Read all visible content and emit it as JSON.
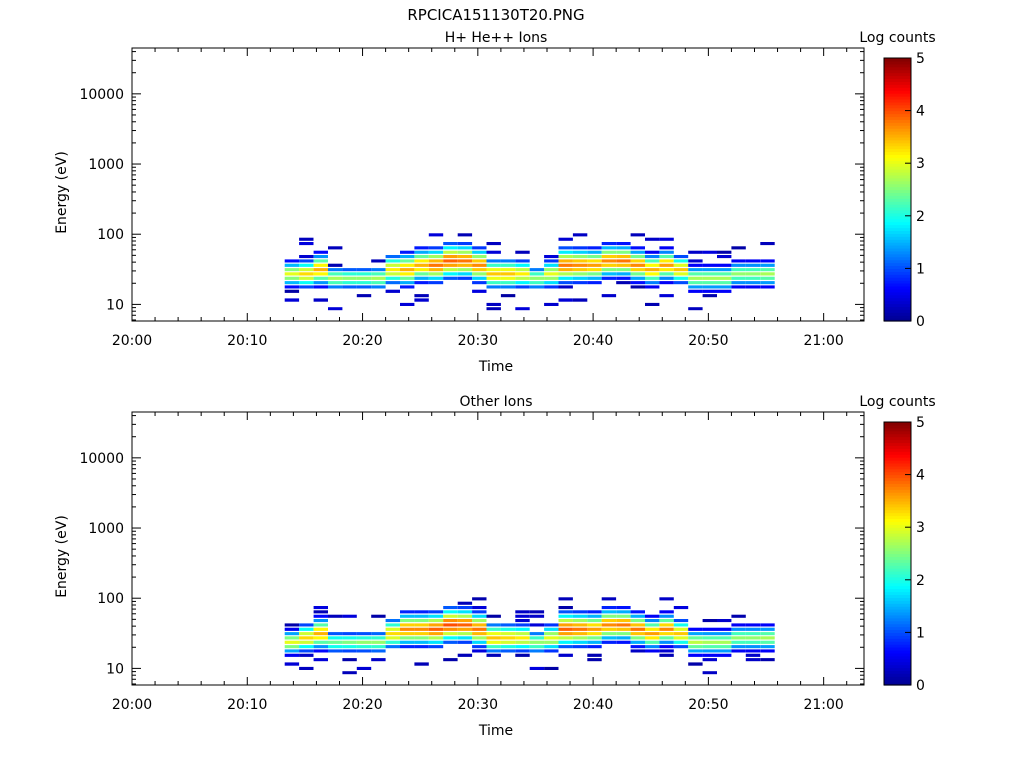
{
  "page": {
    "title": "RPCICA151130T20.PNG"
  },
  "colors": {
    "axis": "#000000",
    "background": "#ffffff",
    "colormap": [
      "#00008f",
      "#0000ff",
      "#0080ff",
      "#00ffff",
      "#80ff80",
      "#ffff00",
      "#ff8000",
      "#ff0000",
      "#800000"
    ]
  },
  "chart_data": [
    {
      "type": "heatmap",
      "title": "H+ He++ Ions",
      "xlabel": "Time",
      "ylabel": "Energy (eV)",
      "x_ticks": [
        "20:00",
        "20:10",
        "20:20",
        "20:30",
        "20:40",
        "20:50",
        "21:00"
      ],
      "x_range_minutes": [
        0,
        63.5
      ],
      "y_scale": "log",
      "y_ticks": [
        "10",
        "100",
        "1000",
        "10000"
      ],
      "y_range": [
        5.8,
        45000
      ],
      "colorbar": {
        "label": "Log counts",
        "range": [
          0,
          5
        ],
        "ticks": [
          "0",
          "1",
          "2",
          "3",
          "4",
          "5"
        ]
      },
      "time_start_min": 13.25,
      "time_step_min": 1.25,
      "energy_bins": [
        6.2,
        7.0,
        8.1,
        9.3,
        10.7,
        12.4,
        14.3,
        16.5,
        19.0,
        21.9,
        25.3,
        29.2,
        33.6,
        38.8,
        44.7,
        51.5,
        59.4,
        68.5,
        79.0,
        91.1
      ],
      "peak_log_counts": [
        3.0,
        3.3,
        3.5,
        2.7,
        2.6,
        2.6,
        2.7,
        3.2,
        3.5,
        3.5,
        3.8,
        3.9,
        3.8,
        3.7,
        3.4,
        3.4,
        3.2,
        2.6,
        3.0,
        3.8,
        3.7,
        3.6,
        3.7,
        3.8,
        3.7,
        3.5,
        3.6,
        3.4,
        2.7,
        2.7,
        2.7,
        2.6,
        2.6,
        2.7
      ],
      "peak_energy_ev": [
        24,
        26,
        28,
        22,
        21,
        21,
        22,
        30,
        30,
        33,
        34,
        40,
        38,
        36,
        27,
        27,
        24,
        22,
        25,
        32,
        34,
        36,
        38,
        38,
        34,
        30,
        33,
        28,
        23,
        23,
        23,
        24,
        24,
        25
      ],
      "band_width_bins": [
        3.8,
        4.2,
        4.8,
        3.5,
        3.3,
        3.3,
        3.5,
        4.6,
        5.0,
        5.0,
        5.2,
        5.4,
        5.2,
        5.2,
        4.6,
        4.6,
        4.2,
        3.6,
        4.2,
        5.4,
        5.2,
        5.0,
        5.0,
        4.8,
        4.8,
        4.6,
        4.6,
        4.2,
        3.8,
        3.8,
        3.8,
        3.8,
        3.8,
        3.8
      ],
      "noise_seed": 7
    },
    {
      "type": "heatmap",
      "title": "Other Ions",
      "xlabel": "Time",
      "ylabel": "Energy (eV)",
      "x_ticks": [
        "20:00",
        "20:10",
        "20:20",
        "20:30",
        "20:40",
        "20:50",
        "21:00"
      ],
      "x_range_minutes": [
        0,
        63.5
      ],
      "y_scale": "log",
      "y_ticks": [
        "10",
        "100",
        "1000",
        "10000"
      ],
      "y_range": [
        5.8,
        45000
      ],
      "colorbar": {
        "label": "Log counts",
        "range": [
          0,
          5
        ],
        "ticks": [
          "0",
          "1",
          "2",
          "3",
          "4",
          "5"
        ]
      },
      "time_start_min": 13.25,
      "time_step_min": 1.25,
      "energy_bins": [
        6.2,
        7.0,
        8.1,
        9.3,
        10.7,
        12.4,
        14.3,
        16.5,
        19.0,
        21.9,
        25.3,
        29.2,
        33.6,
        38.8,
        44.7,
        51.5,
        59.4,
        68.5,
        79.0,
        91.1
      ],
      "peak_log_counts": [
        3.0,
        3.3,
        3.5,
        2.4,
        2.5,
        2.6,
        2.6,
        3.3,
        3.7,
        3.7,
        3.9,
        4.0,
        3.9,
        3.8,
        3.4,
        3.3,
        3.2,
        2.6,
        3.0,
        3.9,
        3.8,
        3.6,
        3.7,
        3.8,
        3.8,
        3.6,
        3.7,
        3.4,
        2.8,
        2.7,
        2.7,
        2.6,
        2.6,
        2.7
      ],
      "peak_energy_ev": [
        22,
        26,
        28,
        22,
        21,
        21,
        22,
        30,
        32,
        34,
        36,
        40,
        38,
        36,
        27,
        26,
        24,
        22,
        24,
        32,
        34,
        36,
        38,
        38,
        34,
        30,
        33,
        28,
        23,
        23,
        23,
        24,
        24,
        24
      ],
      "band_width_bins": [
        3.6,
        4.2,
        4.8,
        3.4,
        3.2,
        3.2,
        3.4,
        4.6,
        5.0,
        5.0,
        5.2,
        5.4,
        5.2,
        5.2,
        4.6,
        4.4,
        4.2,
        3.6,
        4.2,
        5.4,
        5.2,
        5.0,
        5.0,
        4.8,
        4.8,
        4.6,
        4.6,
        4.2,
        3.8,
        3.8,
        3.8,
        3.8,
        3.8,
        3.8
      ],
      "noise_seed": 19
    }
  ]
}
